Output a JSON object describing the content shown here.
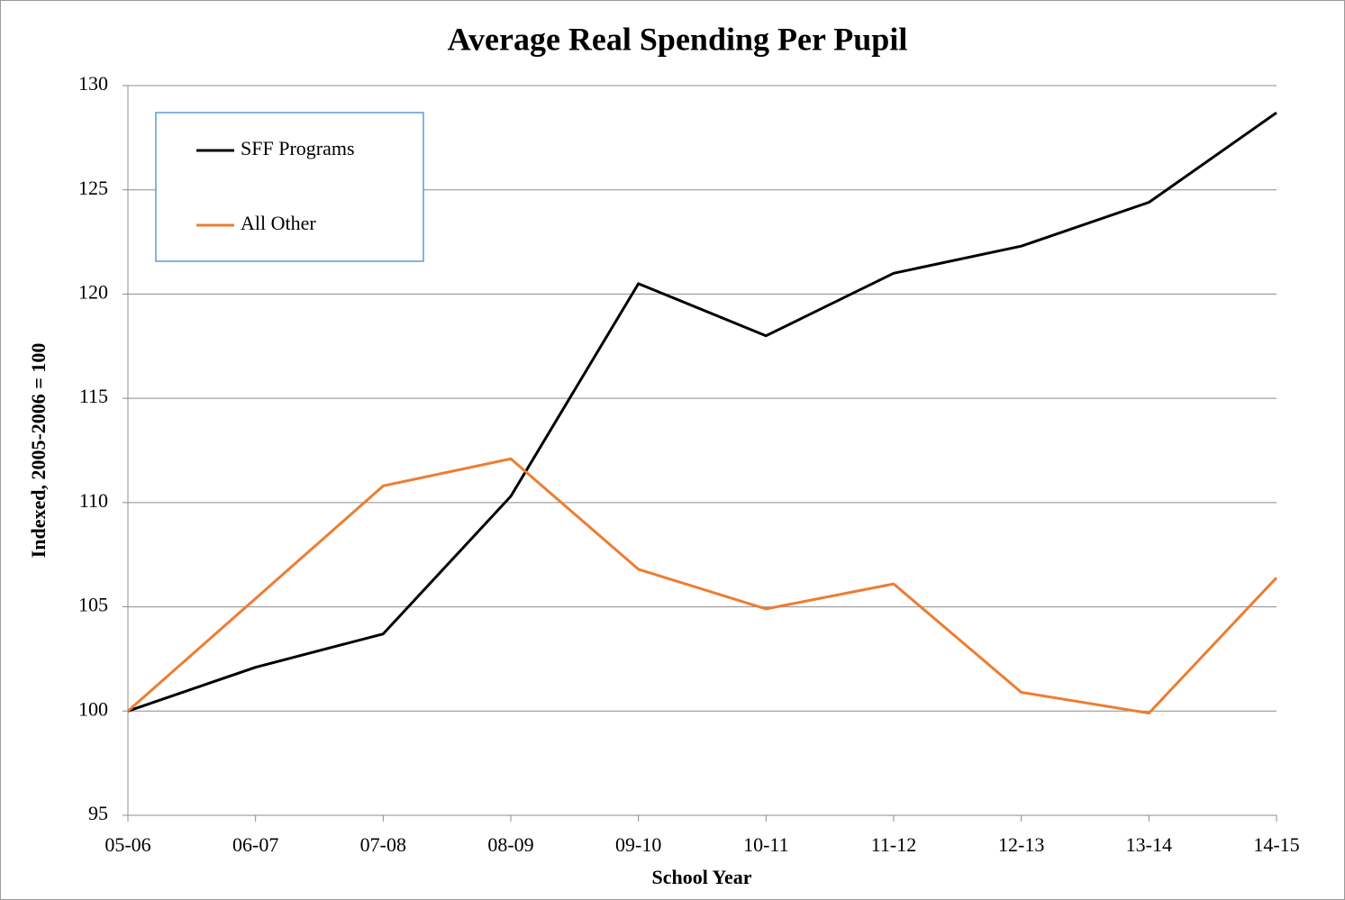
{
  "chart_data": {
    "type": "line",
    "title": "Average Real Spending Per Pupil",
    "x_label": "School Year",
    "y_label": "Indexed, 2005-2006 = 100",
    "categories": [
      "05-06",
      "06-07",
      "07-08",
      "08-09",
      "09-10",
      "10-11",
      "11-12",
      "12-13",
      "13-14",
      "14-15"
    ],
    "series": [
      {
        "name": "SFF Programs",
        "color": "#000000",
        "values": [
          100,
          102.1,
          103.7,
          110.3,
          120.5,
          118.0,
          121.0,
          122.3,
          124.4,
          128.7
        ]
      },
      {
        "name": "All Other",
        "color": "#ed7d31",
        "values": [
          100,
          105.4,
          110.8,
          112.1,
          106.8,
          104.9,
          106.1,
          100.9,
          99.9,
          106.4
        ]
      }
    ],
    "ylim": [
      95,
      130
    ],
    "yticks": [
      95,
      100,
      105,
      110,
      115,
      120,
      125,
      130
    ],
    "grid": true,
    "legend": "upper left"
  }
}
